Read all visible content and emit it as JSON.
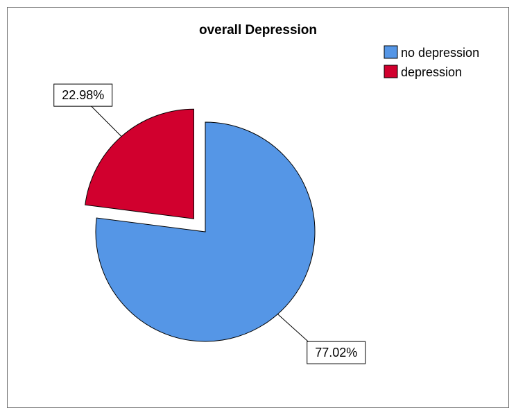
{
  "chart_data": {
    "type": "pie",
    "title": "overall Depression",
    "categories": [
      "no depression",
      "depression"
    ],
    "values": [
      77.02,
      22.98
    ],
    "value_labels": [
      "77.02%",
      "22.98%"
    ],
    "colors": [
      "#5596e6",
      "#d1002e"
    ],
    "exploded": [
      false,
      true
    ],
    "legend_position": "top-right"
  }
}
